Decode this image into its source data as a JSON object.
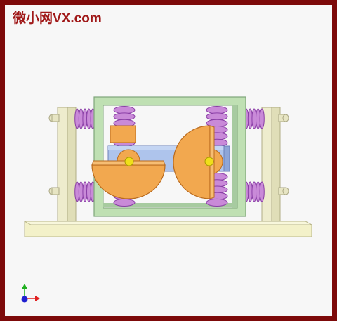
{
  "watermark": {
    "chinese": "微小网",
    "latin": "VX.com",
    "color": "#a01818"
  },
  "scene": {
    "description_type": "mechanism-animation-frame",
    "colors": {
      "base_plate": "#f3f1c9",
      "base_plate_edge": "#b9b68a",
      "side_posts": "#eeeccd",
      "frame": "#bfe0b3",
      "frame_edge": "#7fa57a",
      "springs": "#c98ad8",
      "spring_dark": "#8a3ea6",
      "slider": "#aec4ec",
      "slider_edge": "#6b80b8",
      "cams": "#f2a84f",
      "cam_edge": "#b96a1e",
      "pins": "#f0df1a",
      "background": "#f7f7f7"
    }
  },
  "axis_triad": {
    "icon": "axis-triad-icon",
    "x_color": "#e02020",
    "y_color": "#20b020",
    "z_color": "#2020d0"
  }
}
